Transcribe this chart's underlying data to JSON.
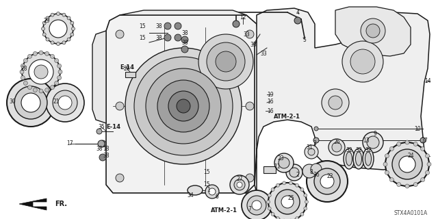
{
  "bg_color": "#ffffff",
  "diagram_color": "#1a1a1a",
  "catalog_num": "STX4A0101A",
  "fig_w": 6.4,
  "fig_h": 3.2,
  "xlim": [
    0,
    640
  ],
  "ylim": [
    0,
    320
  ]
}
